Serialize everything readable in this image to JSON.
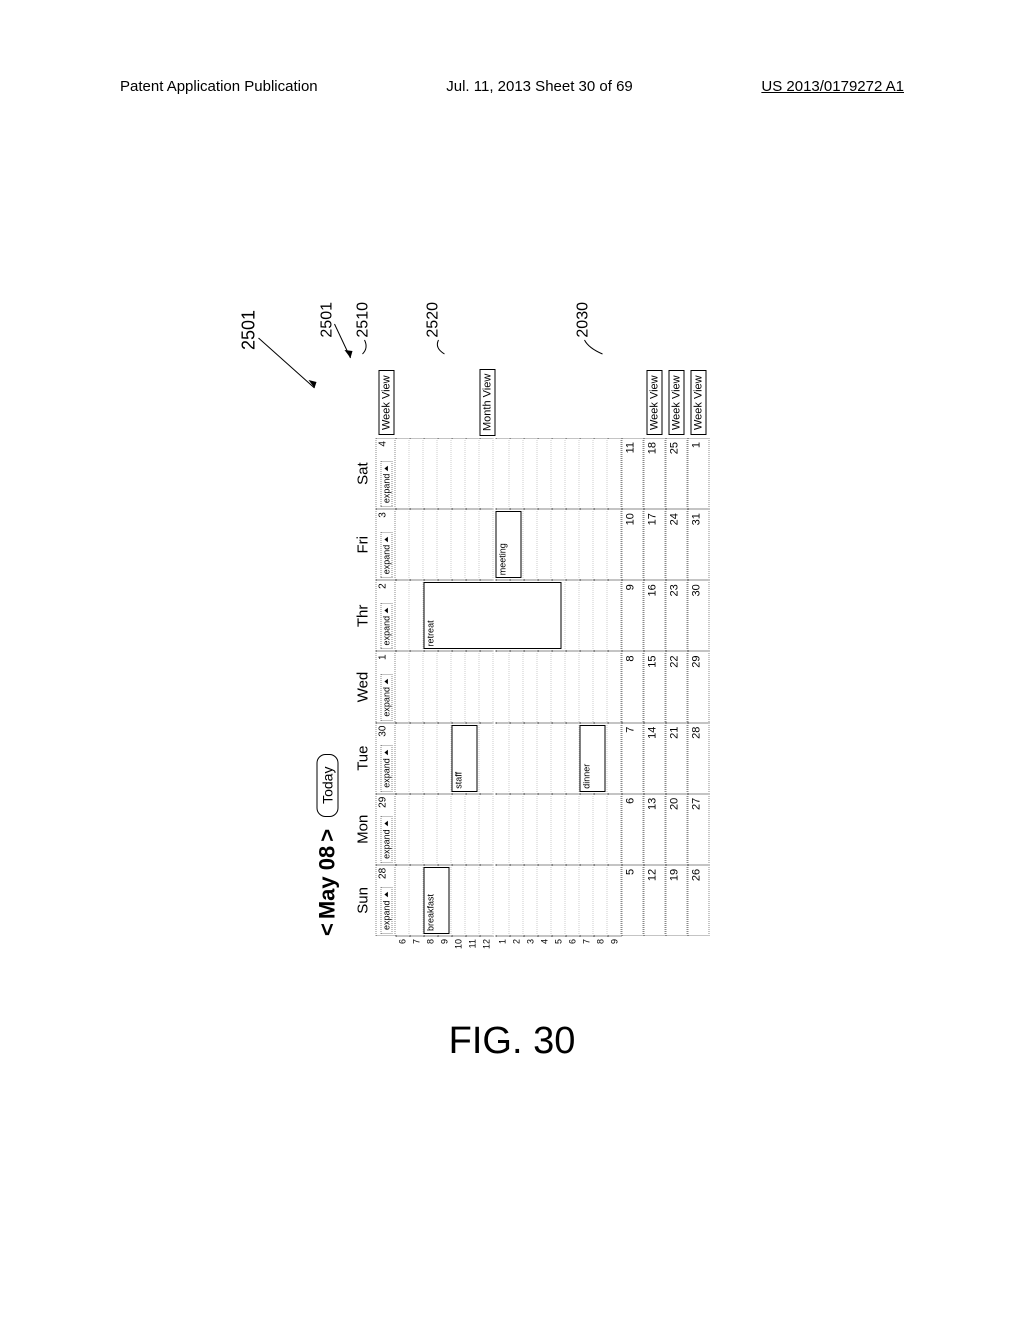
{
  "header": {
    "left": "Patent Application Publication",
    "center": "Jul. 11, 2013  Sheet 30 of 69",
    "right": "US 2013/0179272 A1"
  },
  "nav": {
    "prev": "<",
    "title": "May 08",
    "next": ">",
    "today": "Today"
  },
  "days": [
    "Sun",
    "Mon",
    "Tue",
    "Wed",
    "Thr",
    "Fri",
    "Sat"
  ],
  "expand_label": "expand",
  "weekview_label": "Week View",
  "monthview_label": "Month View",
  "week1_dates": [
    "28",
    "29",
    "30",
    "1",
    "2",
    "3",
    "4"
  ],
  "hours": [
    "6",
    "7",
    "8",
    "9",
    "10",
    "11",
    "12",
    "1",
    "2",
    "3",
    "4",
    "5",
    "6",
    "7",
    "8",
    "9"
  ],
  "events": {
    "breakfast": {
      "label": "breakfast",
      "day": 0,
      "start": 2,
      "span": 2
    },
    "staff": {
      "label": "staff",
      "day": 2,
      "start": 4,
      "span": 2
    },
    "retreat": {
      "label": "retreat",
      "day": 4,
      "start": 2,
      "span": 10
    },
    "meeting": {
      "label": "meeting",
      "day": 5,
      "start": 7,
      "span": 2
    },
    "dinner": {
      "label": "dinner",
      "day": 2,
      "start": 13,
      "span": 2
    }
  },
  "monthview_after_hour_index": 6,
  "weeks_collapsed": [
    [
      "5",
      "6",
      "7",
      "8",
      "9",
      "10",
      "11"
    ],
    [
      "12",
      "13",
      "14",
      "15",
      "16",
      "17",
      "18"
    ],
    [
      "19",
      "20",
      "21",
      "22",
      "23",
      "24",
      "25"
    ],
    [
      "26",
      "27",
      "28",
      "29",
      "30",
      "31",
      "1"
    ]
  ],
  "weekview_on_rows": [
    1,
    2,
    3
  ],
  "refs": {
    "r2501a": "2501",
    "r2501b": "2501",
    "r2510": "2510",
    "r2520": "2520",
    "r2030": "2030"
  },
  "figcap": "FIG. 30",
  "colors": {
    "border": "#000000",
    "dotted": "#888888",
    "bg": "#ffffff"
  }
}
